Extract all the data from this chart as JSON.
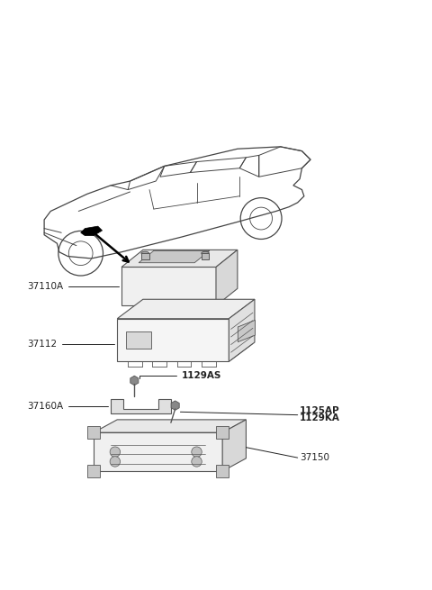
{
  "bg_color": "#ffffff",
  "line_color": "#555555",
  "label_color": "#222222",
  "car_color": "#444444",
  "label_fs": 7.5,
  "parts": [
    {
      "id": "37110A",
      "label": "37110A"
    },
    {
      "id": "37112",
      "label": "37112"
    },
    {
      "id": "1129AS",
      "label": "1129AS"
    },
    {
      "id": "37160A",
      "label": "37160A"
    },
    {
      "id": "1125AP",
      "label": "1125AP"
    },
    {
      "id": "1129KA",
      "label": "1129KA"
    },
    {
      "id": "37150",
      "label": "37150"
    }
  ]
}
